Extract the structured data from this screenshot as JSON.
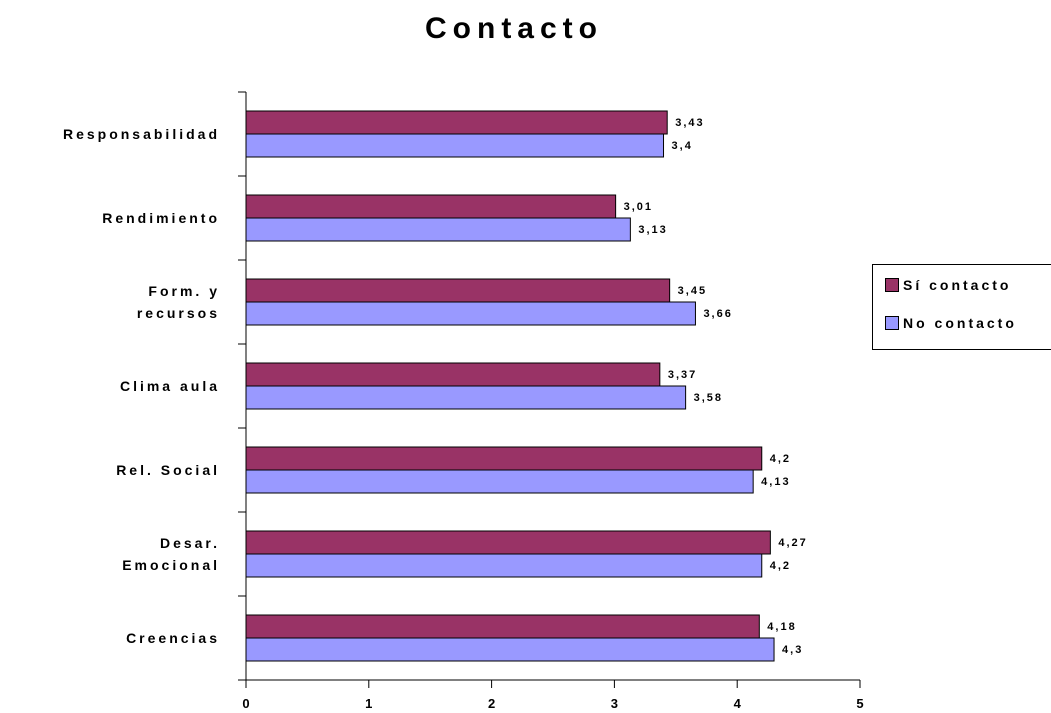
{
  "chart_data": {
    "type": "bar",
    "orientation": "horizontal",
    "title": "Contacto",
    "categories": [
      [
        "Responsabilidad"
      ],
      [
        "Rendimiento"
      ],
      [
        "Form. y",
        "recursos"
      ],
      [
        "Clima aula"
      ],
      [
        "Rel. Social"
      ],
      [
        "Desar.",
        "Emocional"
      ],
      [
        "Creencias"
      ]
    ],
    "series": [
      {
        "name": "Sí contacto",
        "color": "#993366",
        "values": [
          3.43,
          3.01,
          3.45,
          3.37,
          4.2,
          4.27,
          4.18
        ],
        "labels": [
          "3,43",
          "3,01",
          "3,45",
          "3,37",
          "4,2",
          "4,27",
          "4,18"
        ]
      },
      {
        "name": "No contacto",
        "color": "#9999ff",
        "values": [
          3.4,
          3.13,
          3.66,
          3.58,
          4.13,
          4.2,
          4.3
        ],
        "labels": [
          "3,4",
          "3,13",
          "3,66",
          "3,58",
          "4,13",
          "4,2",
          "4,3"
        ]
      }
    ],
    "xlim": [
      0,
      5
    ],
    "xticks": [
      0,
      1,
      2,
      3,
      4,
      5
    ],
    "grid": false,
    "legend_position": "right"
  }
}
